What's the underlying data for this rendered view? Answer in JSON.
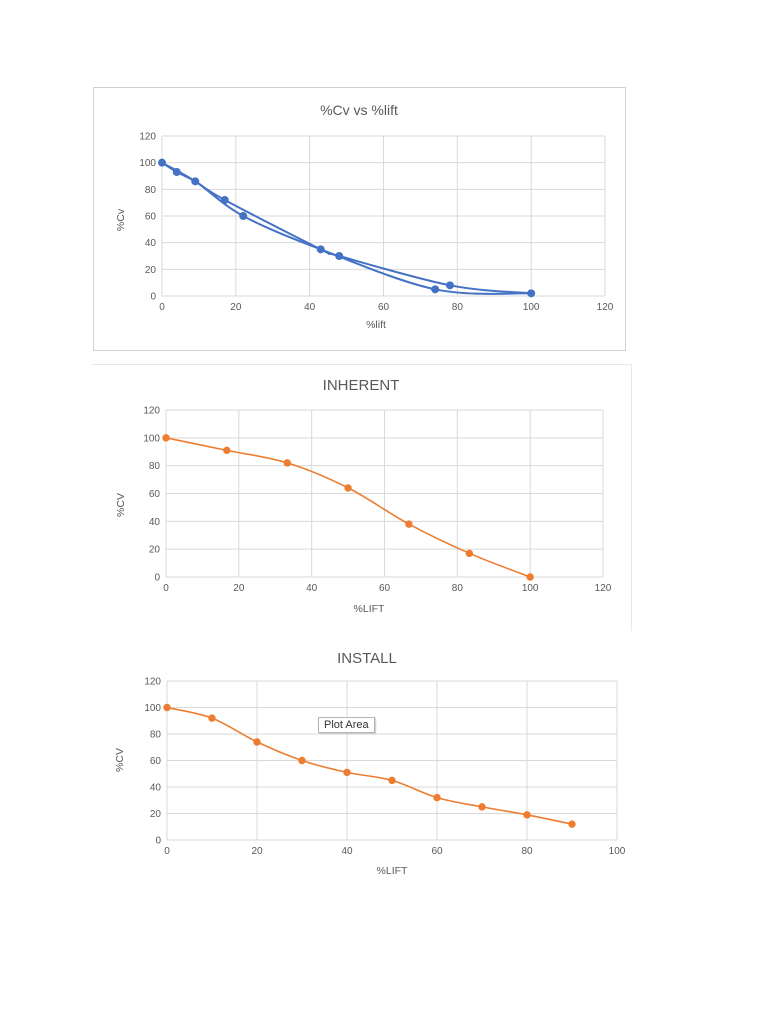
{
  "chart_data": [
    {
      "type": "scatter",
      "title": "%Cv vs %lift",
      "xlabel": "%lift",
      "ylabel": "%Cv",
      "xlim": [
        0,
        120
      ],
      "ylim": [
        0,
        120
      ],
      "xticks": [
        "0",
        "20",
        "40",
        "60",
        "80",
        "100",
        "120"
      ],
      "yticks": [
        "0",
        "20",
        "40",
        "60",
        "80",
        "100",
        "120"
      ],
      "grid": true,
      "color": "#4472C4",
      "series": [
        {
          "x": [
            0,
            4,
            9,
            17,
            22,
            43,
            48,
            74,
            78,
            100
          ],
          "y": [
            100,
            93,
            86,
            72,
            60,
            35,
            30,
            5,
            8,
            2
          ]
        }
      ]
    },
    {
      "type": "line",
      "title": "INHERENT",
      "xlabel": "%LIFT",
      "ylabel": "%CV",
      "xlim": [
        0,
        120
      ],
      "ylim": [
        0,
        120
      ],
      "xticks": [
        "0",
        "20",
        "40",
        "60",
        "80",
        "100",
        "120"
      ],
      "yticks": [
        "0",
        "20",
        "40",
        "60",
        "80",
        "100",
        "120"
      ],
      "grid": true,
      "color": "#ED7D31",
      "series": [
        {
          "x": [
            0,
            16.7,
            33.3,
            50,
            66.7,
            83.3,
            100
          ],
          "y": [
            100,
            91,
            82,
            64,
            38,
            17,
            0
          ]
        }
      ]
    },
    {
      "type": "line",
      "title": "INSTALL",
      "xlabel": "%LIFT",
      "ylabel": "%CV",
      "xlim": [
        0,
        100
      ],
      "ylim": [
        0,
        120
      ],
      "xticks": [
        "0",
        "20",
        "40",
        "60",
        "80",
        "100"
      ],
      "yticks": [
        "0",
        "20",
        "40",
        "60",
        "80",
        "100",
        "120"
      ],
      "grid": true,
      "color": "#ED7D31",
      "annotation": "Plot Area",
      "series": [
        {
          "x": [
            0,
            10,
            20,
            30,
            40,
            50,
            60,
            70,
            80,
            90
          ],
          "y": [
            100,
            92,
            74,
            60,
            51,
            45,
            32,
            25,
            19,
            12
          ]
        }
      ]
    }
  ]
}
